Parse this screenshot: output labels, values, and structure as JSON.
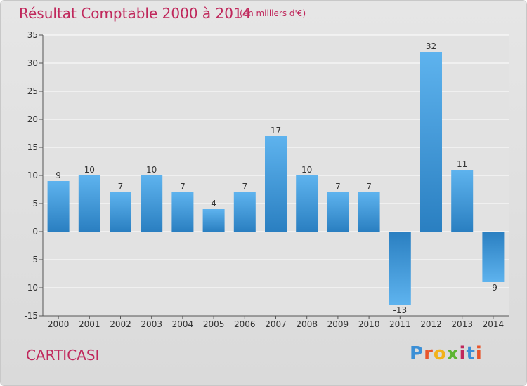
{
  "header": {
    "title": "Résultat Comptable 2000 à 2014",
    "subtitle": "(en milliers d'€)"
  },
  "footer": {
    "commune": "CARTICASI",
    "logo_text": "Proxiti",
    "logo_colors": [
      "#3b8fd6",
      "#e8552b",
      "#f2b21a",
      "#5cb531",
      "#c0285c",
      "#3b8fd6",
      "#e8552b"
    ]
  },
  "colors": {
    "title": "#c0285c",
    "bar_dark": "#2a7fc1",
    "bar_light": "#5eb3ee",
    "grid": "#ffffff",
    "plot_bg": "#e2e2e2"
  },
  "chart_data": {
    "type": "bar",
    "title": "Résultat Comptable 2000 à 2014",
    "subtitle": "(en milliers d'€)",
    "categories": [
      "2000",
      "2001",
      "2002",
      "2003",
      "2004",
      "2005",
      "2006",
      "2007",
      "2008",
      "2009",
      "2010",
      "2011",
      "2012",
      "2013",
      "2014"
    ],
    "values": [
      9,
      10,
      7,
      10,
      7,
      4,
      7,
      17,
      10,
      7,
      7,
      -13,
      32,
      11,
      -9
    ],
    "ylim": [
      -15,
      35
    ],
    "yticks": [
      -15,
      -10,
      -5,
      0,
      5,
      10,
      15,
      20,
      25,
      30,
      35
    ],
    "grid": true,
    "legend": "none"
  }
}
